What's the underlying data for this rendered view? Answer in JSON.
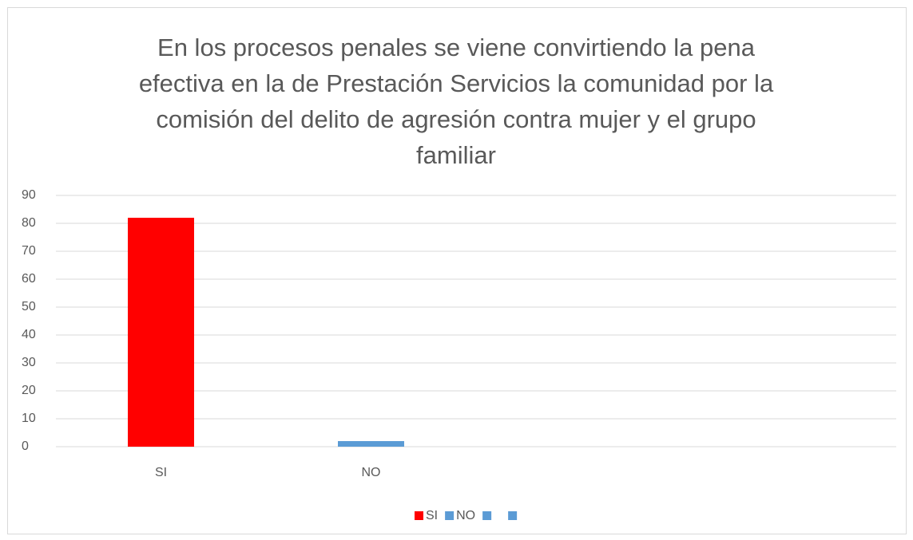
{
  "chart_data": {
    "type": "bar",
    "title": [
      "En los procesos penales se viene convirtiendo la pena",
      "efectiva en la de Prestación Servicios la comunidad por la",
      "comisión del delito de agresión contra mujer y el grupo",
      "familiar"
    ],
    "categories": [
      "SI",
      "NO",
      null,
      null
    ],
    "values": [
      82,
      2,
      null,
      null
    ],
    "colors": [
      "#ff0000",
      "#5b9bd5",
      "#5b9bd5",
      "#5b9bd5"
    ],
    "ylim": [
      0,
      90
    ],
    "yticks": [
      0,
      10,
      20,
      30,
      40,
      50,
      60,
      70,
      80,
      90
    ],
    "grid": true,
    "legend": "bottom"
  }
}
